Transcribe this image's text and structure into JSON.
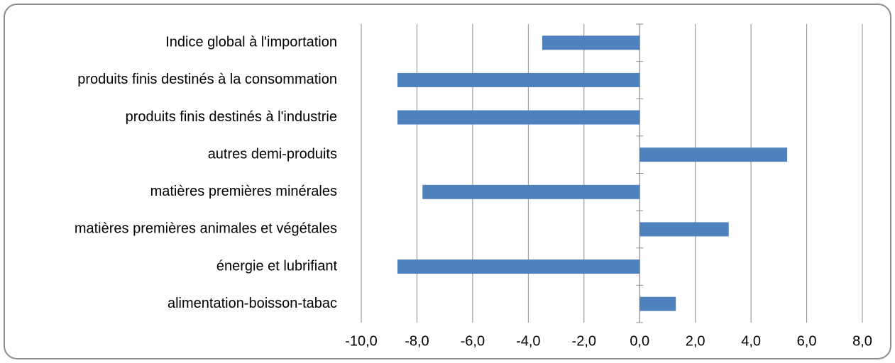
{
  "chart_data": {
    "type": "barh",
    "categories": [
      "Indice global à l'importation",
      "produits finis destinés à la consommation",
      "produits finis destinés à l'industrie",
      "autres demi-produits",
      "matières premières minérales",
      "matières premières animales et végétales",
      "énergie et lubrifiant",
      "alimentation-boisson-tabac"
    ],
    "values": [
      -3.5,
      -8.7,
      -8.7,
      5.3,
      -7.8,
      3.2,
      -8.7,
      1.3
    ],
    "color": "#4f81bd",
    "xlim": [
      -10,
      8
    ],
    "xticks": [
      {
        "value": -10,
        "label": "-10,0"
      },
      {
        "value": -8,
        "label": "-8,0"
      },
      {
        "value": -6,
        "label": "-6,0"
      },
      {
        "value": -4,
        "label": "-4,0"
      },
      {
        "value": -2,
        "label": "-2,0"
      },
      {
        "value": 0,
        "label": "0,0"
      },
      {
        "value": 2,
        "label": "2,0"
      },
      {
        "value": 4,
        "label": "4,0"
      },
      {
        "value": 6,
        "label": "6,0"
      },
      {
        "value": 8,
        "label": "8,0"
      }
    ],
    "grid": true
  }
}
